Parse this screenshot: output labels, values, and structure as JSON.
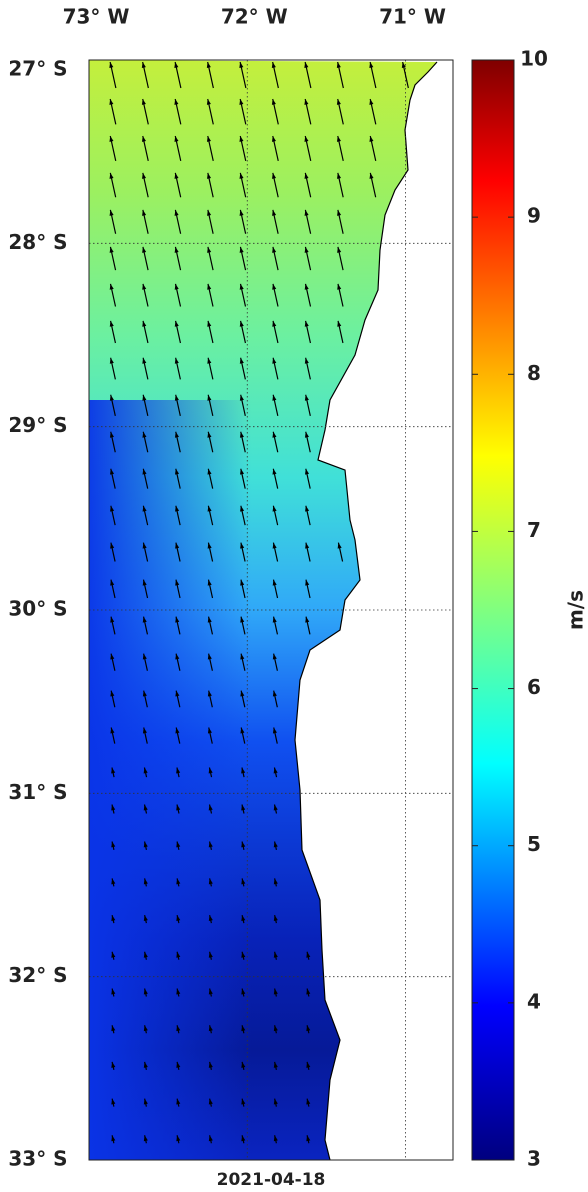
{
  "map": {
    "lon_lim": [
      -73,
      -70.7
    ],
    "lat_lim": [
      -33,
      -27
    ],
    "lon_ticks": [
      {
        "value": -73,
        "label": "73° W"
      },
      {
        "value": -72,
        "label": "72° W"
      },
      {
        "value": -71,
        "label": "71° W"
      }
    ],
    "lat_ticks": [
      {
        "value": -27,
        "label": "27° S"
      },
      {
        "value": -28,
        "label": "28° S"
      },
      {
        "value": -29,
        "label": "29° S"
      },
      {
        "value": -30,
        "label": "30° S"
      },
      {
        "value": -31,
        "label": "31° S"
      },
      {
        "value": -32,
        "label": "32° S"
      },
      {
        "value": -33,
        "label": "33° S"
      }
    ],
    "date": "2021-04-18"
  },
  "colorbar": {
    "label": "m/s",
    "lim": [
      3,
      10
    ],
    "ticks": [
      3,
      4,
      5,
      6,
      7,
      8,
      9,
      10
    ]
  }
}
